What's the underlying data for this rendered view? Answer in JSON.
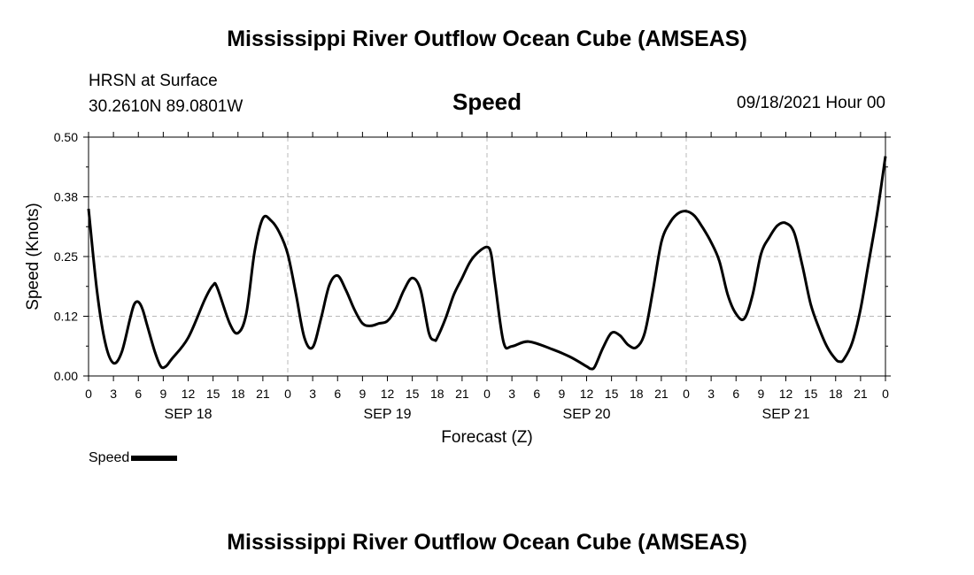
{
  "header": {
    "title": "Mississippi River Outflow Ocean Cube (AMSEAS)",
    "station_name": "HRSN at Surface",
    "station_coords": "30.2610N  89.0801W",
    "variable": "Speed",
    "datetime": "09/18/2021 Hour 00"
  },
  "footer": {
    "title": "Mississippi River Outflow Ocean Cube (AMSEAS)"
  },
  "legend": {
    "label": "Speed"
  },
  "chart_data": {
    "type": "line",
    "title": "Speed",
    "xlabel": "Forecast (Z)",
    "ylabel": "Speed (Knots)",
    "ylim": [
      0,
      0.5
    ],
    "xlim": [
      0,
      96
    ],
    "yticks": [
      "0.00",
      "0.12",
      "0.25",
      "0.38",
      "0.50"
    ],
    "xtick_labels": [
      "0",
      "3",
      "6",
      "9",
      "12",
      "15",
      "18",
      "21",
      "0",
      "3",
      "6",
      "9",
      "12",
      "15",
      "18",
      "21",
      "0",
      "3",
      "6",
      "9",
      "12",
      "15",
      "18",
      "21",
      "0",
      "3",
      "6",
      "9",
      "12",
      "15",
      "18",
      "21",
      "0"
    ],
    "date_labels": [
      {
        "label": "SEP 18",
        "hour": 12
      },
      {
        "label": "SEP 19",
        "hour": 36
      },
      {
        "label": "SEP 20",
        "hour": 60
      },
      {
        "label": "SEP 21",
        "hour": 84
      }
    ],
    "grid": true,
    "legend_position": "bottom-left",
    "series": [
      {
        "name": "Speed",
        "color": "#000000",
        "points": [
          [
            0,
            0.35
          ],
          [
            1,
            0.18
          ],
          [
            2,
            0.07
          ],
          [
            3,
            0.027
          ],
          [
            4,
            0.05
          ],
          [
            5,
            0.12
          ],
          [
            5.5,
            0.15
          ],
          [
            6,
            0.155
          ],
          [
            6.5,
            0.14
          ],
          [
            7,
            0.11
          ],
          [
            8,
            0.05
          ],
          [
            8.7,
            0.02
          ],
          [
            9.3,
            0.02
          ],
          [
            10,
            0.035
          ],
          [
            12,
            0.08
          ],
          [
            14,
            0.16
          ],
          [
            15,
            0.19
          ],
          [
            15.5,
            0.185
          ],
          [
            17,
            0.11
          ],
          [
            18,
            0.09
          ],
          [
            19,
            0.13
          ],
          [
            20,
            0.26
          ],
          [
            21,
            0.33
          ],
          [
            22,
            0.325
          ],
          [
            23,
            0.3
          ],
          [
            24,
            0.255
          ],
          [
            25,
            0.17
          ],
          [
            26,
            0.08
          ],
          [
            27,
            0.06
          ],
          [
            28,
            0.12
          ],
          [
            29,
            0.19
          ],
          [
            30,
            0.21
          ],
          [
            31,
            0.18
          ],
          [
            32,
            0.14
          ],
          [
            33,
            0.11
          ],
          [
            34,
            0.105
          ],
          [
            35,
            0.11
          ],
          [
            36,
            0.115
          ],
          [
            37,
            0.14
          ],
          [
            38,
            0.18
          ],
          [
            39,
            0.205
          ],
          [
            40,
            0.18
          ],
          [
            41,
            0.09
          ],
          [
            41.7,
            0.075
          ],
          [
            42,
            0.08
          ],
          [
            43,
            0.12
          ],
          [
            44,
            0.17
          ],
          [
            45,
            0.205
          ],
          [
            46,
            0.24
          ],
          [
            47,
            0.26
          ],
          [
            48,
            0.27
          ],
          [
            48.5,
            0.255
          ],
          [
            49,
            0.19
          ],
          [
            50,
            0.07
          ],
          [
            51,
            0.062
          ],
          [
            53,
            0.072
          ],
          [
            56,
            0.055
          ],
          [
            58,
            0.04
          ],
          [
            60,
            0.02
          ],
          [
            60.5,
            0.015
          ],
          [
            61,
            0.02
          ],
          [
            62,
            0.06
          ],
          [
            63,
            0.09
          ],
          [
            64,
            0.085
          ],
          [
            65,
            0.065
          ],
          [
            66,
            0.06
          ],
          [
            67,
            0.09
          ],
          [
            68,
            0.18
          ],
          [
            69,
            0.28
          ],
          [
            70,
            0.32
          ],
          [
            71,
            0.34
          ],
          [
            72,
            0.345
          ],
          [
            73,
            0.335
          ],
          [
            74,
            0.31
          ],
          [
            75,
            0.28
          ],
          [
            76,
            0.24
          ],
          [
            77,
            0.17
          ],
          [
            78,
            0.13
          ],
          [
            79,
            0.12
          ],
          [
            80,
            0.17
          ],
          [
            81,
            0.255
          ],
          [
            82,
            0.29
          ],
          [
            83,
            0.315
          ],
          [
            84,
            0.32
          ],
          [
            85,
            0.3
          ],
          [
            86,
            0.23
          ],
          [
            87,
            0.15
          ],
          [
            88,
            0.1
          ],
          [
            89,
            0.06
          ],
          [
            90,
            0.035
          ],
          [
            90.5,
            0.03
          ],
          [
            91,
            0.035
          ],
          [
            92,
            0.07
          ],
          [
            93,
            0.14
          ],
          [
            94,
            0.24
          ],
          [
            95,
            0.34
          ],
          [
            96,
            0.46
          ]
        ]
      }
    ]
  }
}
